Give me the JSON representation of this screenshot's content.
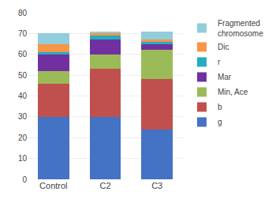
{
  "chart_data": {
    "type": "bar",
    "stacked": true,
    "categories": [
      "Control",
      "C2",
      "C3"
    ],
    "series": [
      {
        "name": "g",
        "color": "#4472C4",
        "values": [
          30,
          30,
          24
        ]
      },
      {
        "name": "b",
        "color": "#C0504D",
        "values": [
          16,
          23,
          24
        ]
      },
      {
        "name": "Min, Ace",
        "color": "#9BBB59",
        "values": [
          6,
          7,
          14
        ]
      },
      {
        "name": "Mar",
        "color": "#7030A0",
        "values": [
          8,
          7,
          3
        ]
      },
      {
        "name": "r",
        "color": "#23AEBF",
        "values": [
          1,
          2,
          1
        ]
      },
      {
        "name": "Dic",
        "color": "#F79646",
        "values": [
          4,
          1,
          1
        ]
      },
      {
        "name": "Fragmented\nchromosome",
        "color": "#92CDDC",
        "values": [
          5,
          1,
          4
        ]
      }
    ],
    "ylim": [
      0,
      80
    ],
    "yticks": [
      0,
      10,
      20,
      30,
      40,
      50,
      60,
      70,
      80
    ],
    "grid": true,
    "legend": "upper right"
  }
}
